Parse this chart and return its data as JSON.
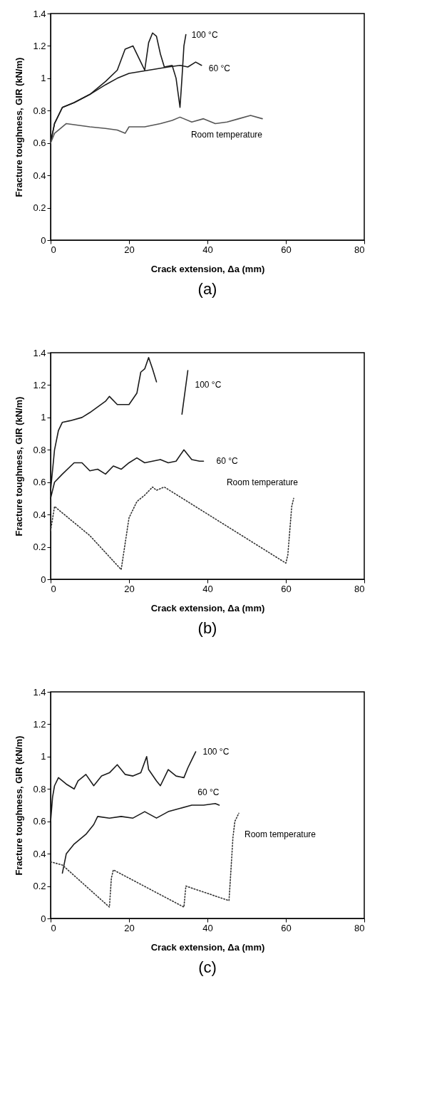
{
  "chart_data": [
    {
      "type": "line",
      "xlabel": "Crack extension,  Δa (mm)",
      "ylabel": "Fracture toughness, GIR (kN/m)",
      "annotations": [
        "(a)"
      ],
      "xlim": [
        0,
        80
      ],
      "ylim": [
        0,
        1.4
      ],
      "xticks": [
        0,
        20,
        40,
        60,
        80
      ],
      "yticks": [
        0,
        0.2,
        0.4,
        0.6,
        0.8,
        1,
        1.2,
        1.4
      ],
      "grid": false,
      "legend": false,
      "series": [
        {
          "name": "100 °C",
          "color": "#1a1a1a",
          "line_style": "solid",
          "x": [
            0,
            1,
            3,
            6,
            10,
            14,
            17,
            19,
            21,
            23,
            24,
            25,
            26,
            27,
            28,
            29,
            31,
            32,
            33,
            33.5,
            34,
            34.5
          ],
          "values": [
            0.6,
            0.72,
            0.82,
            0.85,
            0.9,
            0.98,
            1.05,
            1.18,
            1.2,
            1.1,
            1.05,
            1.22,
            1.28,
            1.26,
            1.15,
            1.07,
            1.08,
            1,
            0.82,
            1,
            1.2,
            1.27
          ]
        },
        {
          "name": "60 °C",
          "color": "#1a1a1a",
          "line_style": "solid",
          "x": [
            0,
            1,
            3,
            6,
            10,
            14,
            17,
            20,
            25,
            30,
            33,
            35,
            37,
            38.5
          ],
          "values": [
            0.6,
            0.72,
            0.82,
            0.85,
            0.9,
            0.96,
            1,
            1.03,
            1.05,
            1.07,
            1.08,
            1.07,
            1.1,
            1.08
          ]
        },
        {
          "name": "Room temperature",
          "color": "#555555",
          "line_style": "solid",
          "x": [
            0,
            1,
            2,
            4,
            7,
            10,
            14,
            17,
            19,
            20,
            24,
            28,
            31,
            33,
            36,
            39,
            42,
            45,
            48,
            51,
            54
          ],
          "values": [
            0.6,
            0.66,
            0.68,
            0.72,
            0.71,
            0.7,
            0.69,
            0.68,
            0.66,
            0.7,
            0.7,
            0.72,
            0.74,
            0.76,
            0.73,
            0.75,
            0.72,
            0.73,
            0.75,
            0.77,
            0.75
          ]
        }
      ]
    },
    {
      "type": "line",
      "xlabel": "Crack extension,  Δa (mm)",
      "ylabel": "Fracture toughness, GIR (kN/m)",
      "annotations": [
        "(b)"
      ],
      "xlim": [
        0,
        80
      ],
      "ylim": [
        0,
        1.4
      ],
      "xticks": [
        0,
        20,
        40,
        60,
        80
      ],
      "yticks": [
        0,
        0.2,
        0.4,
        0.6,
        0.8,
        1,
        1.2,
        1.4
      ],
      "grid": false,
      "legend": false,
      "series": [
        {
          "name": "100 °C",
          "color": "#1a1a1a",
          "line_style": "solid",
          "x": [
            0,
            1,
            2,
            3,
            5,
            8,
            10,
            14,
            15,
            17,
            20,
            22,
            23,
            24,
            25,
            26,
            27,
            30,
            33.5,
            35
          ],
          "values": [
            0.55,
            0.8,
            0.92,
            0.97,
            0.98,
            1,
            1.03,
            1.1,
            1.13,
            1.08,
            1.08,
            1.15,
            1.28,
            1.3,
            1.37,
            1.3,
            1.22,
            null,
            1.02,
            1.29
          ]
        },
        {
          "name": "60 °C",
          "color": "#1a1a1a",
          "line_style": "solid",
          "x": [
            0,
            1,
            3,
            6,
            8,
            10,
            12,
            14,
            16,
            18,
            20,
            22,
            24,
            26,
            28,
            30,
            32,
            34,
            36,
            38,
            39
          ],
          "values": [
            0.5,
            0.6,
            0.65,
            0.72,
            0.72,
            0.67,
            0.68,
            0.65,
            0.7,
            0.68,
            0.72,
            0.75,
            0.72,
            0.73,
            0.74,
            0.72,
            0.73,
            0.8,
            0.74,
            0.73,
            0.73
          ]
        },
        {
          "name": "Room temperature",
          "color": "#333333",
          "line_style": "dotted",
          "x": [
            0,
            1,
            10,
            18,
            19,
            20,
            22,
            24,
            26,
            27,
            29,
            60,
            60.5,
            61,
            61.5,
            62
          ],
          "values": [
            0.3,
            0.45,
            0.27,
            0.06,
            0.22,
            0.38,
            0.48,
            0.52,
            0.57,
            0.55,
            0.57,
            0.1,
            0.15,
            0.3,
            0.45,
            0.5
          ]
        }
      ]
    },
    {
      "type": "line",
      "xlabel": "Crack extension,  Δa (mm)",
      "ylabel": "Fracture toughness, GIR (kN/m)",
      "annotations": [
        "(c)"
      ],
      "xlim": [
        0,
        80
      ],
      "ylim": [
        0,
        1.4
      ],
      "xticks": [
        0,
        20,
        40,
        60,
        80
      ],
      "yticks": [
        0,
        0.2,
        0.4,
        0.6,
        0.8,
        1,
        1.2,
        1.4
      ],
      "grid": false,
      "legend": false,
      "series": [
        {
          "name": "100 °C",
          "color": "#1a1a1a",
          "line_style": "solid",
          "x": [
            0,
            0.5,
            1,
            2,
            4,
            6,
            7,
            9,
            11,
            13,
            15,
            17,
            19,
            21,
            23,
            24.5,
            25,
            27,
            28,
            30,
            32,
            34,
            35,
            36,
            37
          ],
          "values": [
            0.6,
            0.75,
            0.82,
            0.87,
            0.83,
            0.8,
            0.85,
            0.89,
            0.82,
            0.88,
            0.9,
            0.95,
            0.89,
            0.88,
            0.9,
            1,
            0.92,
            0.85,
            0.82,
            0.92,
            0.88,
            0.87,
            0.93,
            0.98,
            1.03
          ]
        },
        {
          "name": "60 °C",
          "color": "#1a1a1a",
          "line_style": "solid",
          "x": [
            3,
            4,
            6,
            9,
            11,
            12,
            15,
            18,
            21,
            24,
            27,
            30,
            33,
            36,
            39,
            42,
            43
          ],
          "values": [
            0.28,
            0.4,
            0.46,
            0.52,
            0.58,
            0.63,
            0.62,
            0.63,
            0.62,
            0.66,
            0.62,
            0.66,
            0.68,
            0.7,
            0.7,
            0.71,
            0.7
          ]
        },
        {
          "name": "Room temperature",
          "color": "#333333",
          "line_style": "dotted",
          "x": [
            0,
            3,
            15,
            15.5,
            16,
            34,
            34.5,
            45.5,
            46,
            46.5,
            47,
            48
          ],
          "values": [
            0.35,
            0.33,
            0.07,
            0.25,
            0.3,
            0.07,
            0.2,
            0.11,
            0.3,
            0.5,
            0.6,
            0.65
          ]
        }
      ]
    }
  ]
}
